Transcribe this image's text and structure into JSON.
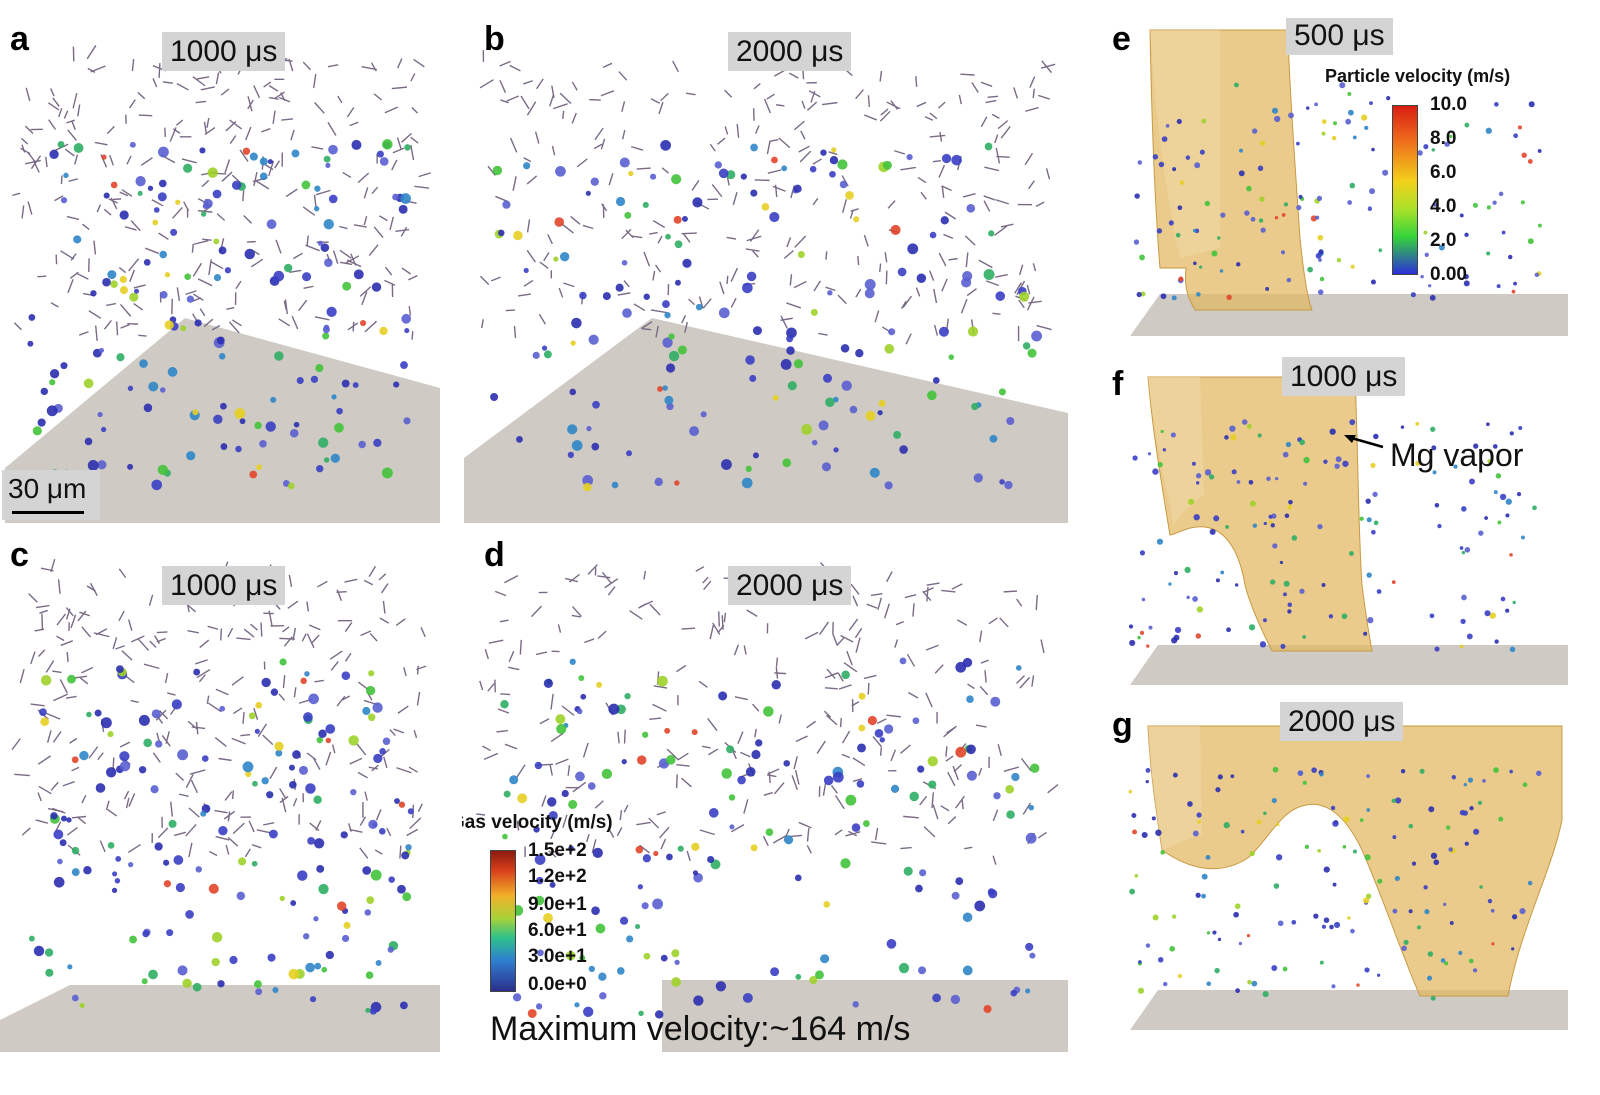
{
  "panels": [
    {
      "key": "a",
      "label": "a",
      "time": "1000 μs"
    },
    {
      "key": "b",
      "label": "b",
      "time": "2000 μs"
    },
    {
      "key": "c",
      "label": "c",
      "time": "1000 μs"
    },
    {
      "key": "d",
      "label": "d",
      "time": "2000 μs"
    },
    {
      "key": "e",
      "label": "e",
      "time": "500 μs"
    },
    {
      "key": "f",
      "label": "f",
      "time": "1000 μs"
    },
    {
      "key": "g",
      "label": "g",
      "time": "2000 μs"
    }
  ],
  "scale_bar": {
    "label": "30 μm"
  },
  "gas_colorbar": {
    "title": "Gas velocity (m/s)",
    "ticks": [
      "1.5e+2",
      "1.2e+2",
      "9.0e+1",
      "6.0e+1",
      "3.0e+1",
      "0.0e+0"
    ]
  },
  "particle_colorbar": {
    "title": "Particle velocity (m/s)",
    "ticks": [
      "10.0",
      "8.0",
      "6.0",
      "4.0",
      "2.0",
      "0.00"
    ]
  },
  "max_velocity": "Maximum velocity:~164 m/s",
  "vapor_label": "Mg vapor",
  "colors": {
    "substrate": "#cfcbc4",
    "vapor_fill": "#e2b760",
    "badge_bg": "#d4d4d4",
    "particle_low": "#2a2fb0",
    "particle_mid": "#3fbf3a",
    "particle_high": "#d8261a"
  }
}
